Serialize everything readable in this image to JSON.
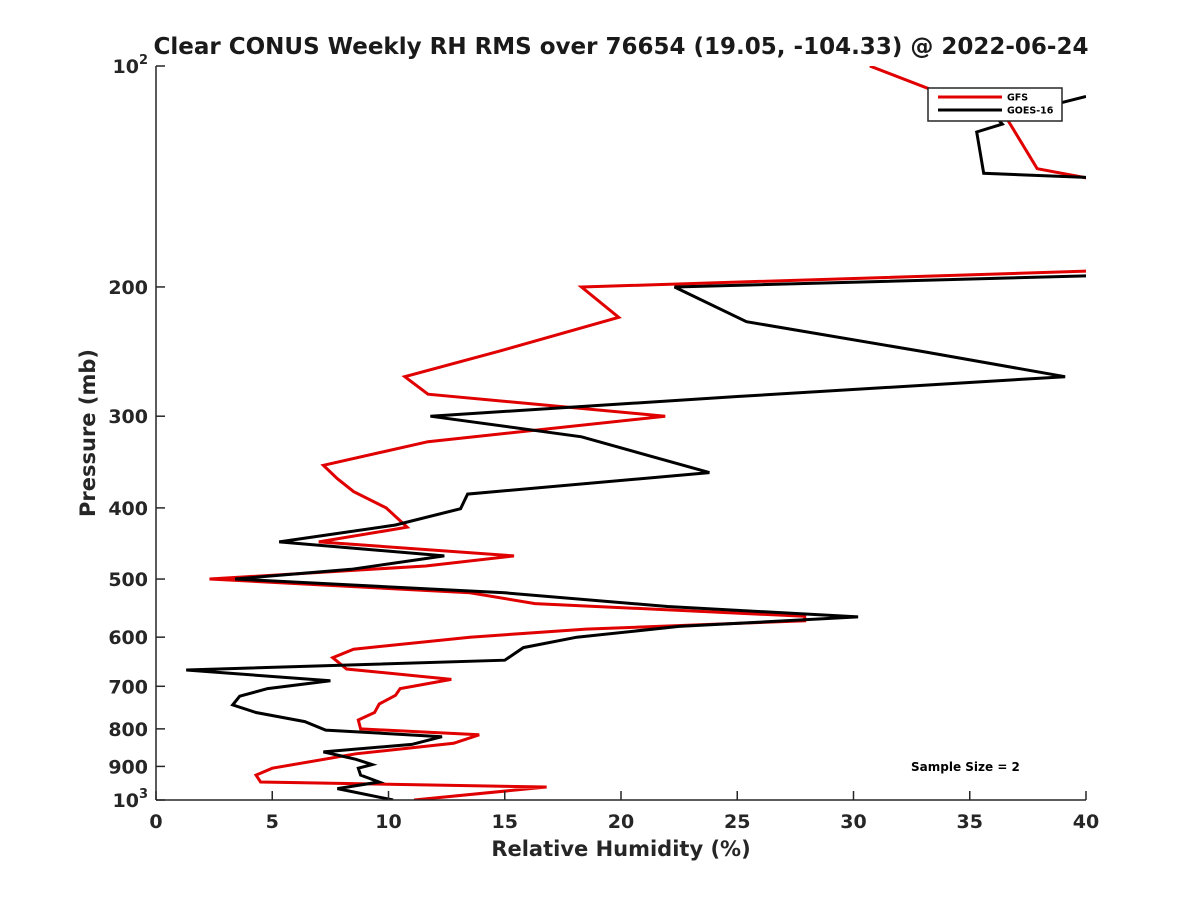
{
  "chart_data": {
    "type": "line",
    "title": "Clear CONUS Weekly RH RMS over 76654 (19.05, -104.33) @ 2022-06-24",
    "xlabel": "Relative Humidity (%)",
    "ylabel": "Pressure (mb)",
    "xlim": [
      0,
      40
    ],
    "ylim": [
      100,
      1000
    ],
    "yscale": "log",
    "yreversed": true,
    "xticks": [
      "0",
      "5",
      "10",
      "15",
      "20",
      "25",
      "30",
      "35",
      "40"
    ],
    "xtick_values": [
      0,
      5,
      10,
      15,
      20,
      25,
      30,
      35,
      40
    ],
    "yticks": [
      {
        "value": 100,
        "base": "10",
        "exp": "2"
      },
      {
        "value": 200,
        "label": "200"
      },
      {
        "value": 300,
        "label": "300"
      },
      {
        "value": 400,
        "label": "400"
      },
      {
        "value": 500,
        "label": "500"
      },
      {
        "value": 600,
        "label": "600"
      },
      {
        "value": 700,
        "label": "700"
      },
      {
        "value": 800,
        "label": "800"
      },
      {
        "value": 900,
        "label": "900"
      },
      {
        "value": 1000,
        "base": "10",
        "exp": "3"
      }
    ],
    "legend_position": "top-right",
    "annotation": "Sample Size = 2",
    "series": [
      {
        "name": "GFS",
        "color": "#e00000",
        "points": [
          [
            30.7,
            100
          ],
          [
            36.6,
            118
          ],
          [
            37.9,
            138
          ],
          [
            40.5,
            143
          ],
          [
            40.8,
            190
          ],
          [
            18.3,
            200
          ],
          [
            19.9,
            220
          ],
          [
            14.7,
            245
          ],
          [
            10.7,
            265
          ],
          [
            11.7,
            280
          ],
          [
            21.9,
            300
          ],
          [
            11.7,
            325
          ],
          [
            7.2,
            350
          ],
          [
            7.8,
            365
          ],
          [
            8.5,
            380
          ],
          [
            9.9,
            400
          ],
          [
            10.8,
            425
          ],
          [
            7.0,
            445
          ],
          [
            15.4,
            465
          ],
          [
            11.6,
            480
          ],
          [
            2.3,
            500
          ],
          [
            13.5,
            522
          ],
          [
            16.3,
            540
          ],
          [
            27.9,
            562
          ],
          [
            27.9,
            570
          ],
          [
            18.5,
            585
          ],
          [
            13.5,
            600
          ],
          [
            8.5,
            623
          ],
          [
            7.6,
            640
          ],
          [
            8.2,
            663
          ],
          [
            12.7,
            685
          ],
          [
            10.5,
            705
          ],
          [
            10.3,
            720
          ],
          [
            9.6,
            740
          ],
          [
            9.4,
            760
          ],
          [
            8.7,
            778
          ],
          [
            8.8,
            800
          ],
          [
            13.9,
            815
          ],
          [
            12.8,
            837
          ],
          [
            8.6,
            865
          ],
          [
            5.0,
            905
          ],
          [
            4.3,
            925
          ],
          [
            4.5,
            945
          ],
          [
            16.8,
            960
          ],
          [
            11.1,
            1000
          ]
        ]
      },
      {
        "name": "GOES-16",
        "color": "#000000",
        "points": [
          [
            40.0,
            110
          ],
          [
            36.2,
            118
          ],
          [
            36.4,
            120
          ],
          [
            35.3,
            123
          ],
          [
            35.6,
            140
          ],
          [
            40.5,
            142
          ],
          [
            40.5,
            193
          ],
          [
            22.3,
            200
          ],
          [
            25.4,
            223
          ],
          [
            33.0,
            245
          ],
          [
            39.1,
            265
          ],
          [
            25.0,
            282
          ],
          [
            11.8,
            300
          ],
          [
            18.3,
            320
          ],
          [
            23.8,
            358
          ],
          [
            13.4,
            383
          ],
          [
            13.1,
            401
          ],
          [
            10.3,
            422
          ],
          [
            5.3,
            445
          ],
          [
            12.4,
            465
          ],
          [
            8.4,
            485
          ],
          [
            3.4,
            500
          ],
          [
            15.0,
            522
          ],
          [
            22.0,
            545
          ],
          [
            30.2,
            563
          ],
          [
            22.5,
            580
          ],
          [
            18.1,
            600
          ],
          [
            15.8,
            620
          ],
          [
            15.0,
            645
          ],
          [
            1.3,
            665
          ],
          [
            7.5,
            688
          ],
          [
            4.8,
            705
          ],
          [
            3.6,
            722
          ],
          [
            3.3,
            742
          ],
          [
            4.3,
            760
          ],
          [
            6.4,
            782
          ],
          [
            7.3,
            803
          ],
          [
            12.3,
            820
          ],
          [
            11.0,
            840
          ],
          [
            7.2,
            860
          ],
          [
            8.6,
            880
          ],
          [
            9.3,
            895
          ],
          [
            8.7,
            905
          ],
          [
            8.8,
            925
          ],
          [
            9.6,
            945
          ],
          [
            7.8,
            965
          ],
          [
            10.2,
            1000
          ]
        ]
      }
    ]
  }
}
